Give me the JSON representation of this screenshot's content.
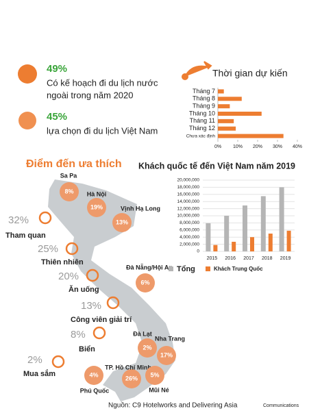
{
  "stats": [
    {
      "value": "49%",
      "lines": [
        "Có kế hoạch đi du lịch nước",
        "ngoài trong năm 2020"
      ]
    },
    {
      "value": "45%",
      "lines": [
        "lựa chọn đi du lịch Việt Nam"
      ]
    }
  ],
  "destinations": {
    "title": "Điểm đến ưa thích",
    "places": [
      {
        "name": "Sa Pa",
        "share": "8%"
      },
      {
        "name": "Hà Nội",
        "share": "19%"
      },
      {
        "name": "Vịnh Hạ Long",
        "share": "13%"
      },
      {
        "name": "Đà Nẵng/Hội An",
        "share": "6%"
      },
      {
        "name": "Đà Lạt",
        "share": "2%"
      },
      {
        "name": "Nha Trang",
        "share": "17%"
      },
      {
        "name": "TP. Hồ Chí Minh",
        "share": "26%"
      },
      {
        "name": "Mũi Né",
        "share": "5%"
      },
      {
        "name": "Phú Quốc",
        "share": "4%"
      }
    ]
  },
  "activities": [
    {
      "name": "Tham quan",
      "share": "32%"
    },
    {
      "name": "Thiên nhiên",
      "share": "25%"
    },
    {
      "name": "Ăn uống",
      "share": "20%"
    },
    {
      "name": "Công viên giải trí",
      "share": "13%"
    },
    {
      "name": "Biển",
      "share": "8%"
    },
    {
      "name": "Mua sắm",
      "share": "2%"
    }
  ],
  "chart_data": [
    {
      "type": "hbar",
      "title": "Thời gian dự kiến",
      "categories": [
        "Tháng 7",
        "Tháng 8",
        "Tháng 9",
        "Tháng 10",
        "Tháng 11",
        "Tháng 12",
        "Chưa xác định"
      ],
      "values": [
        3,
        12,
        6,
        22,
        8,
        9,
        33
      ],
      "color": "#ed7d31",
      "xlim": [
        0,
        40
      ],
      "xticks": [
        {
          "value": 0,
          "label": "0%"
        },
        {
          "value": 10,
          "label": "10%"
        },
        {
          "value": 20,
          "label": "20%"
        },
        {
          "value": 30,
          "label": "30%"
        },
        {
          "value": 40,
          "label": "40%"
        }
      ]
    },
    {
      "type": "bar",
      "title": "Khách quốc tế đến Việt Nam năm 2019",
      "categories": [
        "2015",
        "2016",
        "2017",
        "2018",
        "2019"
      ],
      "series": [
        {
          "name": "Tổng",
          "color": "#b5b5b5",
          "values": [
            7900000,
            10000000,
            12900000,
            15500000,
            18000000
          ]
        },
        {
          "name": "Khách Trung Quốc",
          "color": "#ed7d31",
          "values": [
            1800000,
            2700000,
            4000000,
            5000000,
            5800000
          ]
        }
      ],
      "ylim": [
        0,
        20000000
      ],
      "yticks": [
        0,
        {
          "value": 2000000,
          "label": "2,000,000"
        },
        {
          "value": 4000000,
          "label": "4,000,000"
        },
        {
          "value": 6000000,
          "label": "6,000,000"
        },
        {
          "value": 8000000,
          "label": "8,000,000"
        },
        {
          "value": 10000000,
          "label": "10,000,000"
        },
        {
          "value": 12000000,
          "label": "12,000,000"
        },
        {
          "value": 14000000,
          "label": "14,000,000"
        },
        {
          "value": 16000000,
          "label": "16,000,000"
        },
        {
          "value": 18000000,
          "label": "18,000,000"
        },
        {
          "value": 20000000,
          "label": "20,000,000"
        }
      ],
      "grid": true,
      "legend": "bottom"
    }
  ],
  "source": {
    "text": "Nguồn: C9 Hotelworks and Delivering Asia",
    "suffix": "Communications"
  }
}
